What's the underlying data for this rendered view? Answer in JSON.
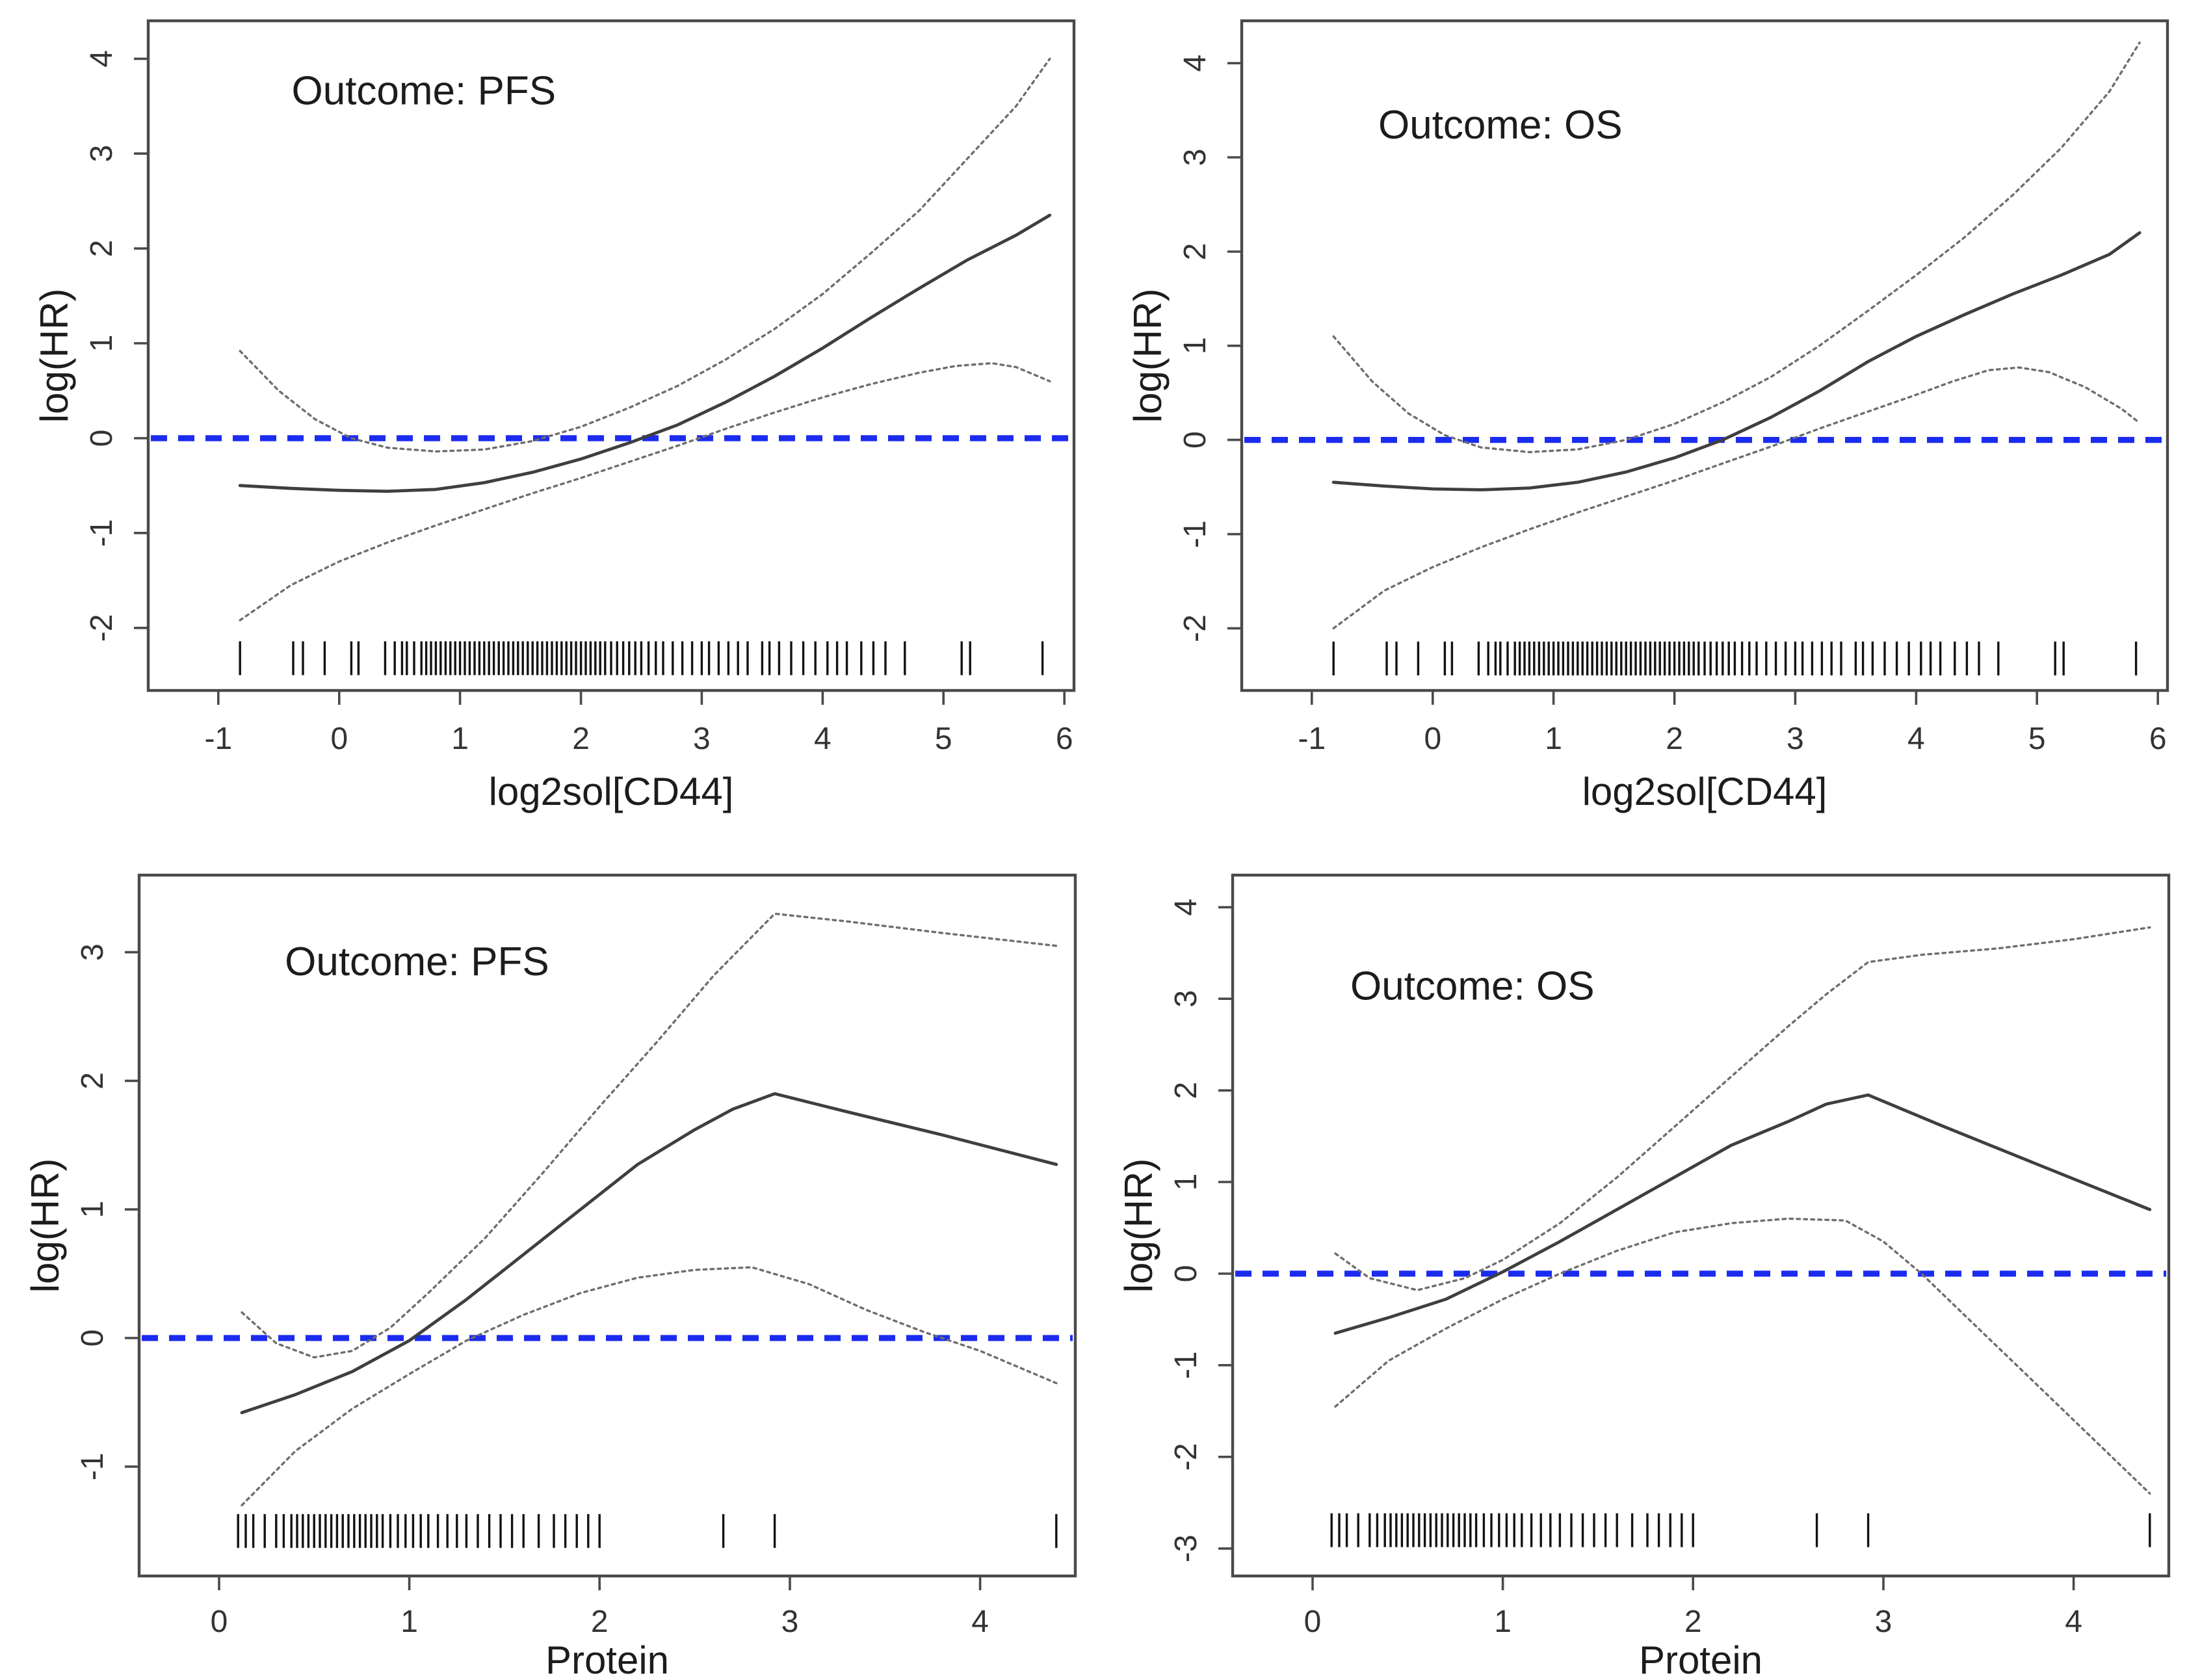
{
  "page": {
    "background": "#ffffff"
  },
  "colors": {
    "reference_line": "#1b2bef",
    "estimate_line": "#3f3f3f",
    "ci_line": "#6e6e6e",
    "frame": "#4a4a4a",
    "tick": "#4a4a4a",
    "tick_label": "#333333",
    "text": "#1c1c1c",
    "rug": "#111111"
  },
  "rugs": {
    "cd44": [
      -0.82,
      -0.38,
      -0.3,
      -0.12,
      0.1,
      0.16,
      0.38,
      0.46,
      0.52,
      0.56,
      0.62,
      0.68,
      0.72,
      0.76,
      0.8,
      0.84,
      0.88,
      0.92,
      0.96,
      1.0,
      1.04,
      1.08,
      1.12,
      1.16,
      1.2,
      1.24,
      1.28,
      1.32,
      1.36,
      1.4,
      1.44,
      1.48,
      1.52,
      1.56,
      1.6,
      1.64,
      1.68,
      1.72,
      1.76,
      1.8,
      1.84,
      1.88,
      1.92,
      1.96,
      2.0,
      2.04,
      2.08,
      2.12,
      2.16,
      2.2,
      2.25,
      2.3,
      2.35,
      2.4,
      2.45,
      2.5,
      2.56,
      2.62,
      2.68,
      2.76,
      2.84,
      2.92,
      3.0,
      3.06,
      3.14,
      3.22,
      3.3,
      3.38,
      3.5,
      3.56,
      3.64,
      3.74,
      3.84,
      3.94,
      4.04,
      4.12,
      4.2,
      4.32,
      4.42,
      4.52,
      4.68,
      5.15,
      5.22,
      5.82
    ],
    "protein": [
      0.1,
      0.14,
      0.18,
      0.24,
      0.3,
      0.34,
      0.38,
      0.41,
      0.44,
      0.47,
      0.5,
      0.53,
      0.56,
      0.59,
      0.62,
      0.65,
      0.68,
      0.71,
      0.74,
      0.77,
      0.8,
      0.83,
      0.86,
      0.9,
      0.94,
      0.98,
      1.02,
      1.06,
      1.1,
      1.15,
      1.2,
      1.25,
      1.3,
      1.36,
      1.42,
      1.48,
      1.54,
      1.6,
      1.68,
      1.76,
      1.82,
      1.88,
      1.94,
      2.0,
      2.65,
      2.92,
      4.4
    ]
  },
  "chart_data": [
    {
      "id": "pfs-cd44",
      "row": "top",
      "type": "line",
      "title": "Outcome: PFS",
      "xlabel": "log2sol[CD44]",
      "ylabel": "log(HR)",
      "xlim": [
        -1.58,
        6.08
      ],
      "ylim": [
        -2.66,
        4.4
      ],
      "xticks": [
        -1,
        0,
        1,
        2,
        3,
        4,
        5,
        6
      ],
      "yticks": [
        -2,
        -1,
        0,
        1,
        2,
        3,
        4
      ],
      "reference_y": 0,
      "title_xy": [
        0.7,
        3.52
      ],
      "rug_key": "cd44",
      "rug_y": -2.32,
      "series": [
        {
          "name": "estimate",
          "style": "solid",
          "points": [
            [
              -0.82,
              -0.5
            ],
            [
              -0.4,
              -0.53
            ],
            [
              0.0,
              -0.55
            ],
            [
              0.4,
              -0.56
            ],
            [
              0.8,
              -0.54
            ],
            [
              1.2,
              -0.47
            ],
            [
              1.6,
              -0.36
            ],
            [
              2.0,
              -0.22
            ],
            [
              2.4,
              -0.05
            ],
            [
              2.8,
              0.14
            ],
            [
              3.2,
              0.38
            ],
            [
              3.6,
              0.65
            ],
            [
              4.0,
              0.95
            ],
            [
              4.4,
              1.27
            ],
            [
              4.8,
              1.58
            ],
            [
              5.2,
              1.88
            ],
            [
              5.6,
              2.14
            ],
            [
              5.88,
              2.35
            ]
          ]
        },
        {
          "name": "upper_95ci",
          "style": "dotted",
          "points": [
            [
              -0.82,
              0.92
            ],
            [
              -0.5,
              0.5
            ],
            [
              -0.2,
              0.2
            ],
            [
              0.1,
              0.0
            ],
            [
              0.4,
              -0.1
            ],
            [
              0.8,
              -0.14
            ],
            [
              1.2,
              -0.12
            ],
            [
              1.6,
              -0.03
            ],
            [
              2.0,
              0.12
            ],
            [
              2.4,
              0.32
            ],
            [
              2.8,
              0.55
            ],
            [
              3.2,
              0.83
            ],
            [
              3.6,
              1.15
            ],
            [
              4.0,
              1.52
            ],
            [
              4.4,
              1.95
            ],
            [
              4.8,
              2.4
            ],
            [
              5.2,
              2.95
            ],
            [
              5.6,
              3.5
            ],
            [
              5.88,
              4.0
            ]
          ]
        },
        {
          "name": "lower_95ci",
          "style": "dotted",
          "points": [
            [
              -0.82,
              -1.92
            ],
            [
              -0.4,
              -1.55
            ],
            [
              0.0,
              -1.3
            ],
            [
              0.4,
              -1.1
            ],
            [
              0.8,
              -0.92
            ],
            [
              1.2,
              -0.75
            ],
            [
              1.6,
              -0.58
            ],
            [
              2.0,
              -0.42
            ],
            [
              2.4,
              -0.25
            ],
            [
              2.8,
              -0.08
            ],
            [
              3.2,
              0.1
            ],
            [
              3.6,
              0.27
            ],
            [
              4.0,
              0.43
            ],
            [
              4.4,
              0.57
            ],
            [
              4.8,
              0.69
            ],
            [
              5.1,
              0.76
            ],
            [
              5.4,
              0.79
            ],
            [
              5.6,
              0.75
            ],
            [
              5.88,
              0.6
            ]
          ]
        }
      ]
    },
    {
      "id": "os-cd44",
      "row": "top",
      "type": "line",
      "title": "Outcome: OS",
      "xlabel": "log2sol[CD44]",
      "ylabel": "log(HR)",
      "xlim": [
        -1.58,
        6.08
      ],
      "ylim": [
        -2.66,
        4.45
      ],
      "xticks": [
        -1,
        0,
        1,
        2,
        3,
        4,
        5,
        6
      ],
      "yticks": [
        -2,
        -1,
        0,
        1,
        2,
        3,
        4
      ],
      "reference_y": 0,
      "title_xy": [
        0.56,
        3.2
      ],
      "rug_key": "cd44",
      "rug_y": -2.32,
      "series": [
        {
          "name": "estimate",
          "style": "solid",
          "points": [
            [
              -0.82,
              -0.45
            ],
            [
              -0.4,
              -0.49
            ],
            [
              0.0,
              -0.52
            ],
            [
              0.4,
              -0.53
            ],
            [
              0.8,
              -0.51
            ],
            [
              1.2,
              -0.45
            ],
            [
              1.6,
              -0.34
            ],
            [
              2.0,
              -0.19
            ],
            [
              2.4,
              0.0
            ],
            [
              2.8,
              0.24
            ],
            [
              3.2,
              0.52
            ],
            [
              3.6,
              0.83
            ],
            [
              4.0,
              1.1
            ],
            [
              4.4,
              1.33
            ],
            [
              4.8,
              1.55
            ],
            [
              5.2,
              1.75
            ],
            [
              5.6,
              1.97
            ],
            [
              5.85,
              2.2
            ]
          ]
        },
        {
          "name": "upper_95ci",
          "style": "dotted",
          "points": [
            [
              -0.82,
              1.1
            ],
            [
              -0.5,
              0.62
            ],
            [
              -0.2,
              0.28
            ],
            [
              0.1,
              0.05
            ],
            [
              0.4,
              -0.08
            ],
            [
              0.8,
              -0.13
            ],
            [
              1.2,
              -0.1
            ],
            [
              1.6,
              0.0
            ],
            [
              2.0,
              0.17
            ],
            [
              2.4,
              0.4
            ],
            [
              2.8,
              0.67
            ],
            [
              3.2,
              1.0
            ],
            [
              3.6,
              1.37
            ],
            [
              4.0,
              1.75
            ],
            [
              4.4,
              2.15
            ],
            [
              4.8,
              2.6
            ],
            [
              5.2,
              3.1
            ],
            [
              5.6,
              3.7
            ],
            [
              5.85,
              4.22
            ]
          ]
        },
        {
          "name": "lower_95ci",
          "style": "dotted",
          "points": [
            [
              -0.82,
              -2.0
            ],
            [
              -0.4,
              -1.6
            ],
            [
              0.0,
              -1.35
            ],
            [
              0.4,
              -1.14
            ],
            [
              0.8,
              -0.95
            ],
            [
              1.2,
              -0.77
            ],
            [
              1.6,
              -0.6
            ],
            [
              2.0,
              -0.43
            ],
            [
              2.4,
              -0.25
            ],
            [
              2.8,
              -0.07
            ],
            [
              3.2,
              0.12
            ],
            [
              3.6,
              0.3
            ],
            [
              4.0,
              0.48
            ],
            [
              4.3,
              0.62
            ],
            [
              4.6,
              0.74
            ],
            [
              4.85,
              0.77
            ],
            [
              5.1,
              0.72
            ],
            [
              5.4,
              0.56
            ],
            [
              5.7,
              0.33
            ],
            [
              5.85,
              0.18
            ]
          ]
        }
      ]
    },
    {
      "id": "pfs-protein",
      "row": "bottom",
      "type": "line",
      "title": "Outcome: PFS",
      "xlabel": "Protein",
      "ylabel": "log(HR)",
      "xlim": [
        -0.42,
        4.5
      ],
      "ylim": [
        -1.85,
        3.6
      ],
      "xticks": [
        0,
        1,
        2,
        3,
        4
      ],
      "yticks": [
        -1,
        0,
        1,
        2,
        3
      ],
      "reference_y": 0,
      "title_xy": [
        1.04,
        2.82
      ],
      "rug_key": "protein",
      "rug_y": -1.5,
      "series": [
        {
          "name": "estimate",
          "style": "solid",
          "points": [
            [
              0.12,
              -0.58
            ],
            [
              0.4,
              -0.44
            ],
            [
              0.7,
              -0.26
            ],
            [
              1.0,
              -0.02
            ],
            [
              1.3,
              0.3
            ],
            [
              1.6,
              0.65
            ],
            [
              1.9,
              1.0
            ],
            [
              2.2,
              1.35
            ],
            [
              2.5,
              1.62
            ],
            [
              2.7,
              1.78
            ],
            [
              2.92,
              1.9
            ],
            [
              3.3,
              1.76
            ],
            [
              3.8,
              1.58
            ],
            [
              4.4,
              1.35
            ]
          ]
        },
        {
          "name": "upper_95ci",
          "style": "dotted",
          "points": [
            [
              0.12,
              0.2
            ],
            [
              0.3,
              -0.04
            ],
            [
              0.5,
              -0.15
            ],
            [
              0.7,
              -0.1
            ],
            [
              0.9,
              0.08
            ],
            [
              1.1,
              0.35
            ],
            [
              1.4,
              0.78
            ],
            [
              1.7,
              1.28
            ],
            [
              2.0,
              1.8
            ],
            [
              2.3,
              2.3
            ],
            [
              2.6,
              2.82
            ],
            [
              2.92,
              3.3
            ],
            [
              3.3,
              3.24
            ],
            [
              3.8,
              3.15
            ],
            [
              4.4,
              3.05
            ]
          ]
        },
        {
          "name": "lower_95ci",
          "style": "dotted",
          "points": [
            [
              0.12,
              -1.3
            ],
            [
              0.4,
              -0.88
            ],
            [
              0.7,
              -0.55
            ],
            [
              1.0,
              -0.28
            ],
            [
              1.3,
              -0.02
            ],
            [
              1.6,
              0.18
            ],
            [
              1.9,
              0.35
            ],
            [
              2.2,
              0.47
            ],
            [
              2.5,
              0.53
            ],
            [
              2.8,
              0.55
            ],
            [
              3.1,
              0.42
            ],
            [
              3.4,
              0.22
            ],
            [
              3.7,
              0.05
            ],
            [
              4.0,
              -0.1
            ],
            [
              4.4,
              -0.35
            ]
          ]
        }
      ]
    },
    {
      "id": "os-protein",
      "row": "bottom",
      "type": "line",
      "title": "Outcome: OS",
      "xlabel": "Protein",
      "ylabel": "log(HR)",
      "xlim": [
        -0.42,
        4.5
      ],
      "ylim": [
        -3.3,
        4.35
      ],
      "xticks": [
        0,
        1,
        2,
        3,
        4
      ],
      "yticks": [
        -3,
        -2,
        -1,
        0,
        1,
        2,
        3,
        4
      ],
      "reference_y": 0,
      "title_xy": [
        0.84,
        2.99
      ],
      "rug_key": "protein",
      "rug_y": -2.8,
      "series": [
        {
          "name": "estimate",
          "style": "solid",
          "points": [
            [
              0.12,
              -0.65
            ],
            [
              0.4,
              -0.48
            ],
            [
              0.7,
              -0.28
            ],
            [
              1.0,
              0.02
            ],
            [
              1.3,
              0.35
            ],
            [
              1.6,
              0.7
            ],
            [
              1.9,
              1.05
            ],
            [
              2.2,
              1.4
            ],
            [
              2.5,
              1.66
            ],
            [
              2.7,
              1.85
            ],
            [
              2.92,
              1.95
            ],
            [
              3.3,
              1.62
            ],
            [
              3.8,
              1.2
            ],
            [
              4.4,
              0.7
            ]
          ]
        },
        {
          "name": "upper_95ci",
          "style": "dotted",
          "points": [
            [
              0.12,
              0.22
            ],
            [
              0.3,
              -0.05
            ],
            [
              0.55,
              -0.18
            ],
            [
              0.8,
              -0.05
            ],
            [
              1.0,
              0.15
            ],
            [
              1.3,
              0.55
            ],
            [
              1.6,
              1.05
            ],
            [
              1.9,
              1.6
            ],
            [
              2.2,
              2.15
            ],
            [
              2.5,
              2.7
            ],
            [
              2.7,
              3.05
            ],
            [
              2.92,
              3.4
            ],
            [
              3.2,
              3.48
            ],
            [
              3.6,
              3.55
            ],
            [
              4.0,
              3.65
            ],
            [
              4.4,
              3.78
            ]
          ]
        },
        {
          "name": "lower_95ci",
          "style": "dotted",
          "points": [
            [
              0.12,
              -1.45
            ],
            [
              0.4,
              -0.95
            ],
            [
              0.7,
              -0.6
            ],
            [
              1.0,
              -0.28
            ],
            [
              1.3,
              0.0
            ],
            [
              1.6,
              0.25
            ],
            [
              1.9,
              0.45
            ],
            [
              2.2,
              0.55
            ],
            [
              2.5,
              0.6
            ],
            [
              2.8,
              0.58
            ],
            [
              3.0,
              0.35
            ],
            [
              3.2,
              0.0
            ],
            [
              3.5,
              -0.6
            ],
            [
              3.8,
              -1.2
            ],
            [
              4.1,
              -1.8
            ],
            [
              4.4,
              -2.4
            ]
          ]
        }
      ]
    }
  ]
}
